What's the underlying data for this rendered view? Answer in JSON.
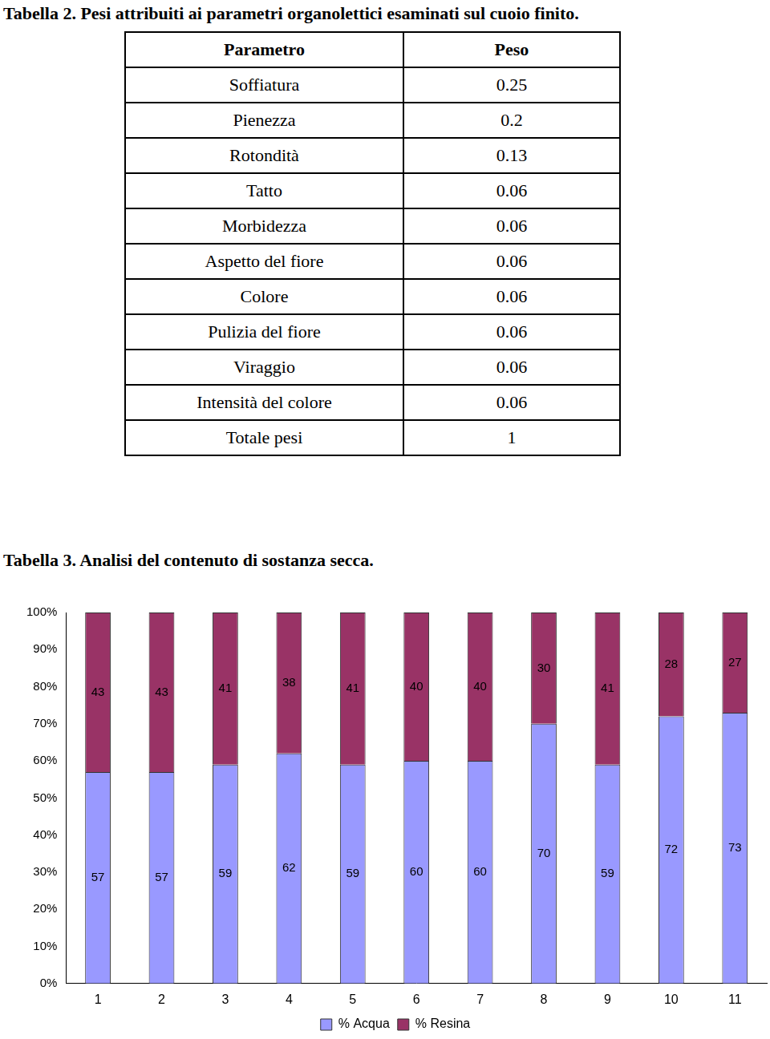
{
  "table_title": "Tabella 2.  Pesi attribuiti ai parametri organolettici esaminati sul cuoio finito.",
  "table": {
    "header": [
      "Parametro",
      "Peso"
    ],
    "rows": [
      [
        "Soffiatura",
        "0.25"
      ],
      [
        "Pienezza",
        "0.2"
      ],
      [
        "Rotondità",
        "0.13"
      ],
      [
        "Tatto",
        "0.06"
      ],
      [
        "Morbidezza",
        "0.06"
      ],
      [
        "Aspetto del fiore",
        "0.06"
      ],
      [
        "Colore",
        "0.06"
      ],
      [
        "Pulizia del fiore",
        "0.06"
      ],
      [
        "Viraggio",
        "0.06"
      ],
      [
        "Intensità del colore",
        "0.06"
      ],
      [
        "Totale pesi",
        "1"
      ]
    ]
  },
  "chart_title": "Tabella  3.  Analisi del contenuto di sostanza secca.",
  "chart_data": {
    "type": "bar",
    "stacked": true,
    "categories": [
      "1",
      "2",
      "3",
      "4",
      "5",
      "6",
      "7",
      "8",
      "9",
      "10",
      "11"
    ],
    "series": [
      {
        "name": "% Acqua",
        "color": "#9999ff",
        "values": [
          57,
          57,
          59,
          62,
          59,
          60,
          60,
          70,
          59,
          72,
          73
        ]
      },
      {
        "name": "% Resina",
        "color": "#993366",
        "values": [
          43,
          43,
          41,
          38,
          41,
          40,
          40,
          30,
          41,
          28,
          27
        ]
      }
    ],
    "ylim": [
      0,
      100
    ],
    "yticks": [
      {
        "value": 0,
        "label": "0%"
      },
      {
        "value": 10,
        "label": "10%"
      },
      {
        "value": 20,
        "label": "20%"
      },
      {
        "value": 30,
        "label": "30%"
      },
      {
        "value": 40,
        "label": "40%"
      },
      {
        "value": 50,
        "label": "50%"
      },
      {
        "value": 60,
        "label": "60%"
      },
      {
        "value": 70,
        "label": "70%"
      },
      {
        "value": 80,
        "label": "80%"
      },
      {
        "value": 90,
        "label": "90%"
      },
      {
        "value": 100,
        "label": "100%"
      }
    ],
    "grid": false,
    "data_labels": true,
    "legend": "bottom"
  }
}
